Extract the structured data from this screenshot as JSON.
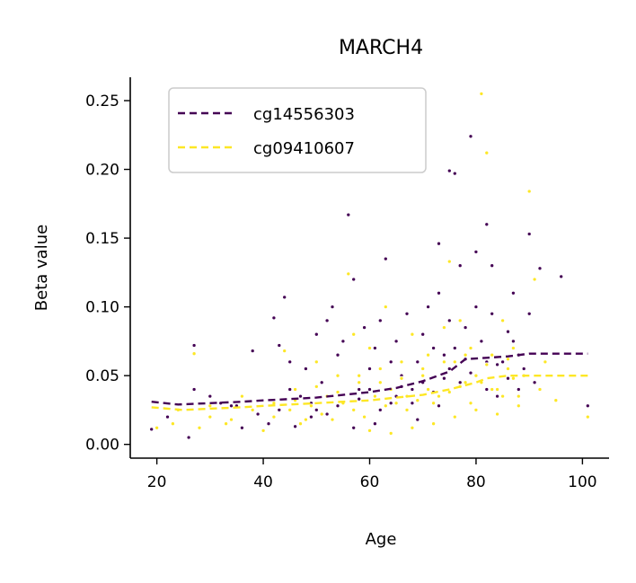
{
  "chart_data": {
    "type": "scatter",
    "title": "MARCH4",
    "xlabel": "Age",
    "ylabel": "Beta value",
    "xlim": [
      15,
      105
    ],
    "ylim": [
      -0.01,
      0.267
    ],
    "xticks": [
      20,
      40,
      60,
      80,
      100
    ],
    "xtick_labels": [
      "20",
      "40",
      "60",
      "80",
      "100"
    ],
    "yticks": [
      0.0,
      0.05,
      0.1,
      0.15,
      0.2,
      0.25
    ],
    "ytick_labels": [
      "0.00",
      "0.05",
      "0.10",
      "0.15",
      "0.20",
      "0.25"
    ],
    "grid": false,
    "legend": {
      "placement": "top-left"
    },
    "series": [
      {
        "name": "cg14556303",
        "color": "#440154",
        "trend_x": [
          19,
          24,
          30,
          36,
          40,
          45,
          50,
          55,
          60,
          65,
          70,
          75,
          78,
          82,
          86,
          90,
          95,
          101
        ],
        "trend_y": [
          0.031,
          0.029,
          0.03,
          0.031,
          0.032,
          0.033,
          0.034,
          0.036,
          0.038,
          0.041,
          0.046,
          0.053,
          0.062,
          0.063,
          0.064,
          0.066,
          0.066,
          0.066
        ],
        "points": [
          [
            19,
            0.011
          ],
          [
            22,
            0.02
          ],
          [
            26,
            0.005
          ],
          [
            27,
            0.072
          ],
          [
            27,
            0.04
          ],
          [
            30,
            0.035
          ],
          [
            32,
            0.03
          ],
          [
            34,
            0.028
          ],
          [
            36,
            0.012
          ],
          [
            38,
            0.068
          ],
          [
            41,
            0.015
          ],
          [
            42,
            0.092
          ],
          [
            43,
            0.072
          ],
          [
            44,
            0.107
          ],
          [
            45,
            0.06
          ],
          [
            46,
            0.013
          ],
          [
            48,
            0.055
          ],
          [
            49,
            0.03
          ],
          [
            50,
            0.08
          ],
          [
            51,
            0.045
          ],
          [
            52,
            0.09
          ],
          [
            53,
            0.1
          ],
          [
            54,
            0.065
          ],
          [
            55,
            0.075
          ],
          [
            56,
            0.167
          ],
          [
            57,
            0.12
          ],
          [
            58,
            0.04
          ],
          [
            59,
            0.085
          ],
          [
            60,
            0.055
          ],
          [
            61,
            0.07
          ],
          [
            62,
            0.09
          ],
          [
            63,
            0.135
          ],
          [
            64,
            0.06
          ],
          [
            65,
            0.075
          ],
          [
            66,
            0.05
          ],
          [
            67,
            0.095
          ],
          [
            68,
            0.03
          ],
          [
            69,
            0.06
          ],
          [
            70,
            0.08
          ],
          [
            71,
            0.1
          ],
          [
            72,
            0.07
          ],
          [
            73,
            0.146
          ],
          [
            73,
            0.11
          ],
          [
            74,
            0.065
          ],
          [
            75,
            0.199
          ],
          [
            75,
            0.09
          ],
          [
            76,
            0.197
          ],
          [
            76,
            0.07
          ],
          [
            77,
            0.13
          ],
          [
            78,
            0.085
          ],
          [
            78,
            0.062
          ],
          [
            79,
            0.224
          ],
          [
            80,
            0.1
          ],
          [
            80,
            0.14
          ],
          [
            81,
            0.075
          ],
          [
            82,
            0.16
          ],
          [
            82,
            0.06
          ],
          [
            83,
            0.13
          ],
          [
            83,
            0.095
          ],
          [
            84,
            0.058
          ],
          [
            85,
            0.09
          ],
          [
            86,
            0.082
          ],
          [
            87,
            0.11
          ],
          [
            87,
            0.075
          ],
          [
            88,
            0.065
          ],
          [
            89,
            0.055
          ],
          [
            90,
            0.153
          ],
          [
            90,
            0.095
          ],
          [
            92,
            0.128
          ],
          [
            96,
            0.122
          ],
          [
            101,
            0.028
          ],
          [
            45,
            0.04
          ],
          [
            50,
            0.025
          ],
          [
            55,
            0.03
          ],
          [
            60,
            0.04
          ],
          [
            65,
            0.035
          ],
          [
            70,
            0.045
          ],
          [
            75,
            0.055
          ],
          [
            80,
            0.05
          ],
          [
            85,
            0.06
          ],
          [
            62,
            0.025
          ],
          [
            68,
            0.04
          ],
          [
            72,
            0.038
          ],
          [
            77,
            0.045
          ],
          [
            54,
            0.028
          ],
          [
            58,
            0.033
          ],
          [
            47,
            0.035
          ],
          [
            52,
            0.022
          ],
          [
            64,
            0.03
          ],
          [
            66,
            0.042
          ],
          [
            74,
            0.048
          ],
          [
            79,
            0.052
          ],
          [
            82,
            0.04
          ],
          [
            86,
            0.048
          ],
          [
            61,
            0.015
          ],
          [
            69,
            0.018
          ],
          [
            73,
            0.028
          ],
          [
            57,
            0.012
          ],
          [
            49,
            0.02
          ],
          [
            43,
            0.025
          ],
          [
            39,
            0.022
          ],
          [
            35,
            0.028
          ],
          [
            84,
            0.035
          ],
          [
            88,
            0.04
          ],
          [
            91,
            0.045
          ]
        ]
      },
      {
        "name": "cg09410607",
        "color": "#fde725",
        "trend_x": [
          19,
          25,
          30,
          36,
          40,
          45,
          50,
          55,
          60,
          65,
          70,
          75,
          80,
          82,
          86,
          90,
          95,
          101
        ],
        "trend_y": [
          0.027,
          0.025,
          0.026,
          0.027,
          0.028,
          0.029,
          0.03,
          0.031,
          0.032,
          0.034,
          0.036,
          0.04,
          0.045,
          0.048,
          0.05,
          0.05,
          0.05,
          0.05
        ],
        "points": [
          [
            20,
            0.012
          ],
          [
            23,
            0.015
          ],
          [
            24,
            0.025
          ],
          [
            27,
            0.066
          ],
          [
            28,
            0.012
          ],
          [
            30,
            0.02
          ],
          [
            33,
            0.015
          ],
          [
            36,
            0.035
          ],
          [
            40,
            0.01
          ],
          [
            42,
            0.03
          ],
          [
            44,
            0.068
          ],
          [
            46,
            0.04
          ],
          [
            48,
            0.018
          ],
          [
            50,
            0.06
          ],
          [
            52,
            0.035
          ],
          [
            54,
            0.05
          ],
          [
            56,
            0.124
          ],
          [
            57,
            0.08
          ],
          [
            58,
            0.045
          ],
          [
            60,
            0.07
          ],
          [
            62,
            0.055
          ],
          [
            63,
            0.1
          ],
          [
            64,
            0.04
          ],
          [
            66,
            0.06
          ],
          [
            67,
            0.035
          ],
          [
            68,
            0.08
          ],
          [
            70,
            0.05
          ],
          [
            71,
            0.065
          ],
          [
            72,
            0.03
          ],
          [
            74,
            0.085
          ],
          [
            75,
            0.133
          ],
          [
            76,
            0.06
          ],
          [
            77,
            0.09
          ],
          [
            78,
            0.045
          ],
          [
            79,
            0.07
          ],
          [
            80,
            0.05
          ],
          [
            81,
            0.255
          ],
          [
            82,
            0.212
          ],
          [
            83,
            0.065
          ],
          [
            84,
            0.04
          ],
          [
            85,
            0.09
          ],
          [
            86,
            0.055
          ],
          [
            87,
            0.07
          ],
          [
            88,
            0.035
          ],
          [
            89,
            0.05
          ],
          [
            90,
            0.184
          ],
          [
            91,
            0.12
          ],
          [
            92,
            0.04
          ],
          [
            93,
            0.06
          ],
          [
            95,
            0.032
          ],
          [
            101,
            0.02
          ],
          [
            45,
            0.025
          ],
          [
            47,
            0.015
          ],
          [
            49,
            0.028
          ],
          [
            51,
            0.022
          ],
          [
            53,
            0.018
          ],
          [
            55,
            0.03
          ],
          [
            57,
            0.025
          ],
          [
            59,
            0.02
          ],
          [
            61,
            0.035
          ],
          [
            63,
            0.028
          ],
          [
            65,
            0.03
          ],
          [
            67,
            0.025
          ],
          [
            69,
            0.032
          ],
          [
            71,
            0.04
          ],
          [
            73,
            0.035
          ],
          [
            75,
            0.038
          ],
          [
            77,
            0.042
          ],
          [
            79,
            0.03
          ],
          [
            81,
            0.045
          ],
          [
            83,
            0.04
          ],
          [
            85,
            0.035
          ],
          [
            87,
            0.048
          ],
          [
            60,
            0.01
          ],
          [
            64,
            0.008
          ],
          [
            68,
            0.012
          ],
          [
            72,
            0.015
          ],
          [
            76,
            0.02
          ],
          [
            80,
            0.025
          ],
          [
            84,
            0.022
          ],
          [
            88,
            0.028
          ],
          [
            58,
            0.05
          ],
          [
            62,
            0.045
          ],
          [
            66,
            0.048
          ],
          [
            70,
            0.055
          ],
          [
            74,
            0.06
          ],
          [
            78,
            0.065
          ],
          [
            82,
            0.058
          ],
          [
            86,
            0.062
          ],
          [
            54,
            0.038
          ],
          [
            50,
            0.042
          ],
          [
            46,
            0.032
          ],
          [
            42,
            0.02
          ],
          [
            38,
            0.025
          ],
          [
            34,
            0.018
          ],
          [
            30,
            0.028
          ]
        ]
      }
    ]
  }
}
